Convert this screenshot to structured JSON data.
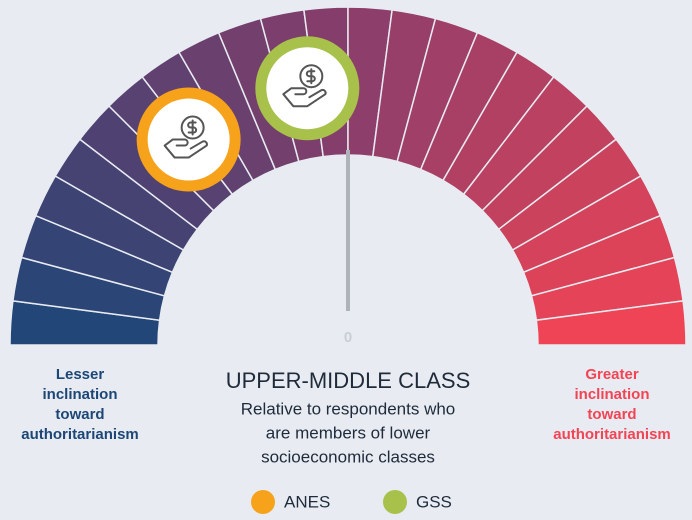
{
  "chart_data": {
    "type": "gauge",
    "title": "UPPER-MIDDLE CLASS",
    "subtitle": [
      "Relative to respondents who",
      "are members of lower",
      "socioeconomic classes"
    ],
    "left_label": [
      "Lesser",
      "inclination",
      "toward",
      "authoritarianism"
    ],
    "right_label": [
      "Greater",
      "inclination",
      "toward",
      "authoritarianism"
    ],
    "xlim": [
      -1,
      1
    ],
    "xticks": [
      0
    ],
    "scale_colors": [
      "#1d4677",
      "#8a3e6c",
      "#f24454"
    ],
    "series": [
      {
        "name": "ANES",
        "color": "#f7a21b",
        "values": [
          -0.42
        ]
      },
      {
        "name": "GSS",
        "color": "#a8c14a",
        "values": [
          -0.1
        ]
      }
    ]
  }
}
